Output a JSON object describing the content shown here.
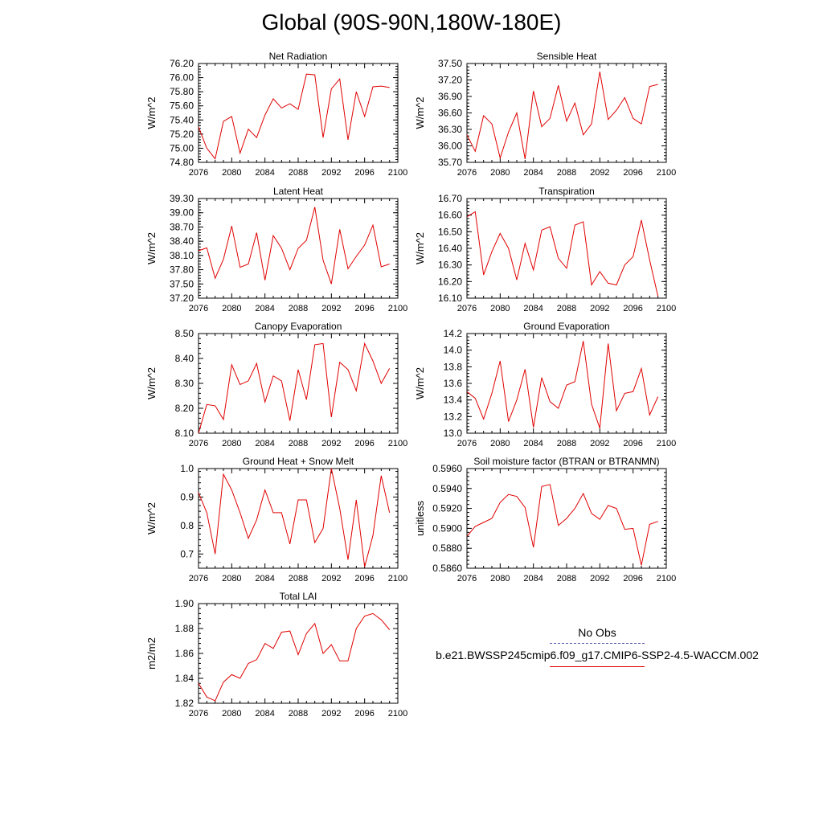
{
  "title": "Global (90S-90N,180W-180E)",
  "legend": {
    "obs_label": "No Obs",
    "case_label": "b.e21.BWSSP245cmip6.f09_g17.CMIP6-SSP2-4.5-WACCM.002",
    "obs_color": "#5a5ab0",
    "case_color": "#e00000"
  },
  "chart_data": [
    {
      "type": "line",
      "title": "Net Radiation",
      "ylabel": "W/m^2",
      "xlabel": "",
      "x": [
        2076,
        2077,
        2078,
        2079,
        2080,
        2081,
        2082,
        2083,
        2084,
        2085,
        2086,
        2087,
        2088,
        2089,
        2090,
        2091,
        2092,
        2093,
        2094,
        2095,
        2096,
        2097,
        2098,
        2099
      ],
      "xlim": [
        2076,
        2100
      ],
      "xticks": [
        "2076",
        "2080",
        "2084",
        "2088",
        "2092",
        "2096",
        "2100"
      ],
      "ylim": [
        74.8,
        76.2
      ],
      "yticks": [
        "74.80",
        "75.00",
        "75.20",
        "75.40",
        "75.60",
        "75.80",
        "76.00",
        "76.20"
      ],
      "series": [
        {
          "name": "b.e21.BWSSP245cmip6.f09_g17.CMIP6-SSP2-4.5-WACCM.002",
          "color": "#e00000",
          "values": [
            75.3,
            75.0,
            74.85,
            75.38,
            75.45,
            74.93,
            75.27,
            75.15,
            75.47,
            75.7,
            75.57,
            75.63,
            75.55,
            76.05,
            76.04,
            75.15,
            75.84,
            75.98,
            75.12,
            75.8,
            75.45,
            75.87,
            75.88,
            75.86
          ]
        }
      ]
    },
    {
      "type": "line",
      "title": "Sensible Heat",
      "ylabel": "W/m^2",
      "xlabel": "",
      "x": [
        2076,
        2077,
        2078,
        2079,
        2080,
        2081,
        2082,
        2083,
        2084,
        2085,
        2086,
        2087,
        2088,
        2089,
        2090,
        2091,
        2092,
        2093,
        2094,
        2095,
        2096,
        2097,
        2098,
        2099
      ],
      "xlim": [
        2076,
        2100
      ],
      "xticks": [
        "2076",
        "2080",
        "2084",
        "2088",
        "2092",
        "2096",
        "2100"
      ],
      "ylim": [
        35.7,
        37.5
      ],
      "yticks": [
        "35.70",
        "36.00",
        "36.30",
        "36.60",
        "36.90",
        "37.20",
        "37.50"
      ],
      "series": [
        {
          "name": "b.e21.BWSSP245cmip6.f09_g17.CMIP6-SSP2-4.5-WACCM.002",
          "color": "#e00000",
          "values": [
            36.2,
            35.9,
            36.55,
            36.4,
            35.78,
            36.25,
            36.6,
            35.76,
            37.0,
            36.35,
            36.5,
            37.1,
            36.45,
            36.78,
            36.2,
            36.4,
            37.35,
            36.48,
            36.65,
            36.88,
            36.5,
            36.4,
            37.08,
            37.12
          ]
        }
      ]
    },
    {
      "type": "line",
      "title": "Latent Heat",
      "ylabel": "W/m^2",
      "xlabel": "",
      "x": [
        2076,
        2077,
        2078,
        2079,
        2080,
        2081,
        2082,
        2083,
        2084,
        2085,
        2086,
        2087,
        2088,
        2089,
        2090,
        2091,
        2092,
        2093,
        2094,
        2095,
        2096,
        2097,
        2098,
        2099
      ],
      "xlim": [
        2076,
        2100
      ],
      "xticks": [
        "2076",
        "2080",
        "2084",
        "2088",
        "2092",
        "2096",
        "2100"
      ],
      "ylim": [
        37.2,
        39.3
      ],
      "yticks": [
        "37.20",
        "37.50",
        "37.80",
        "38.10",
        "38.40",
        "38.70",
        "39.00",
        "39.30"
      ],
      "series": [
        {
          "name": "b.e21.BWSSP245cmip6.f09_g17.CMIP6-SSP2-4.5-WACCM.002",
          "color": "#e00000",
          "values": [
            38.2,
            38.26,
            37.62,
            38.02,
            38.72,
            37.85,
            37.92,
            38.58,
            37.58,
            38.52,
            38.25,
            37.8,
            38.25,
            38.42,
            39.12,
            38.0,
            37.5,
            38.65,
            37.82,
            38.08,
            38.32,
            38.74,
            37.86,
            37.92
          ]
        }
      ]
    },
    {
      "type": "line",
      "title": "Transpiration",
      "ylabel": "W/m^2",
      "xlabel": "",
      "x": [
        2076,
        2077,
        2078,
        2079,
        2080,
        2081,
        2082,
        2083,
        2084,
        2085,
        2086,
        2087,
        2088,
        2089,
        2090,
        2091,
        2092,
        2093,
        2094,
        2095,
        2096,
        2097,
        2098,
        2099
      ],
      "xlim": [
        2076,
        2100
      ],
      "xticks": [
        "2076",
        "2080",
        "2084",
        "2088",
        "2092",
        "2096",
        "2100"
      ],
      "ylim": [
        16.1,
        16.7
      ],
      "yticks": [
        "16.10",
        "16.20",
        "16.30",
        "16.40",
        "16.50",
        "16.60",
        "16.70"
      ],
      "series": [
        {
          "name": "b.e21.BWSSP245cmip6.f09_g17.CMIP6-SSP2-4.5-WACCM.002",
          "color": "#e00000",
          "values": [
            16.59,
            16.62,
            16.24,
            16.38,
            16.49,
            16.4,
            16.21,
            16.43,
            16.27,
            16.51,
            16.53,
            16.34,
            16.28,
            16.54,
            16.56,
            16.18,
            16.26,
            16.19,
            16.18,
            16.3,
            16.35,
            16.57,
            16.33,
            16.11
          ]
        }
      ]
    },
    {
      "type": "line",
      "title": "Canopy Evaporation",
      "ylabel": "W/m^2",
      "xlabel": "",
      "x": [
        2076,
        2077,
        2078,
        2079,
        2080,
        2081,
        2082,
        2083,
        2084,
        2085,
        2086,
        2087,
        2088,
        2089,
        2090,
        2091,
        2092,
        2093,
        2094,
        2095,
        2096,
        2097,
        2098,
        2099
      ],
      "xlim": [
        2076,
        2100
      ],
      "xticks": [
        "2076",
        "2080",
        "2084",
        "2088",
        "2092",
        "2096",
        "2100"
      ],
      "ylim": [
        8.1,
        8.5
      ],
      "yticks": [
        "8.10",
        "8.20",
        "8.30",
        "8.40",
        "8.50"
      ],
      "series": [
        {
          "name": "b.e21.BWSSP245cmip6.f09_g17.CMIP6-SSP2-4.5-WACCM.002",
          "color": "#e00000",
          "values": [
            8.1,
            8.215,
            8.21,
            8.155,
            8.375,
            8.295,
            8.31,
            8.38,
            8.225,
            8.33,
            8.31,
            8.15,
            8.355,
            8.235,
            8.455,
            8.46,
            8.165,
            8.385,
            8.355,
            8.27,
            8.46,
            8.39,
            8.3,
            8.36
          ]
        }
      ]
    },
    {
      "type": "line",
      "title": "Ground Evaporation",
      "ylabel": "W/m^2",
      "xlabel": "",
      "x": [
        2076,
        2077,
        2078,
        2079,
        2080,
        2081,
        2082,
        2083,
        2084,
        2085,
        2086,
        2087,
        2088,
        2089,
        2090,
        2091,
        2092,
        2093,
        2094,
        2095,
        2096,
        2097,
        2098,
        2099
      ],
      "xlim": [
        2076,
        2100
      ],
      "xticks": [
        "2076",
        "2080",
        "2084",
        "2088",
        "2092",
        "2096",
        "2100"
      ],
      "ylim": [
        13.0,
        14.2
      ],
      "yticks": [
        "13.0",
        "13.2",
        "13.4",
        "13.6",
        "13.8",
        "14.0",
        "14.2"
      ],
      "series": [
        {
          "name": "b.e21.BWSSP245cmip6.f09_g17.CMIP6-SSP2-4.5-WACCM.002",
          "color": "#e00000",
          "values": [
            13.5,
            13.42,
            13.17,
            13.48,
            13.87,
            13.14,
            13.4,
            13.77,
            13.07,
            13.67,
            13.38,
            13.3,
            13.58,
            13.62,
            14.11,
            13.35,
            13.06,
            14.08,
            13.27,
            13.48,
            13.5,
            13.78,
            13.22,
            13.44
          ]
        }
      ]
    },
    {
      "type": "line",
      "title": "Ground Heat + Snow Melt",
      "ylabel": "W/m^2",
      "xlabel": "",
      "x": [
        2076,
        2077,
        2078,
        2079,
        2080,
        2081,
        2082,
        2083,
        2084,
        2085,
        2086,
        2087,
        2088,
        2089,
        2090,
        2091,
        2092,
        2093,
        2094,
        2095,
        2096,
        2097,
        2098,
        2099
      ],
      "xlim": [
        2076,
        2100
      ],
      "xticks": [
        "2076",
        "2080",
        "2084",
        "2088",
        "2092",
        "2096",
        "2100"
      ],
      "ylim": [
        0.65,
        1.0
      ],
      "yticks": [
        "0.7",
        "0.8",
        "0.9",
        "1.0"
      ],
      "series": [
        {
          "name": "b.e21.BWSSP245cmip6.f09_g17.CMIP6-SSP2-4.5-WACCM.002",
          "color": "#e00000",
          "values": [
            0.915,
            0.845,
            0.7,
            0.98,
            0.925,
            0.845,
            0.755,
            0.82,
            0.925,
            0.845,
            0.845,
            0.735,
            0.89,
            0.89,
            0.74,
            0.79,
            1.0,
            0.86,
            0.68,
            0.89,
            0.655,
            0.765,
            0.975,
            0.845
          ]
        }
      ]
    },
    {
      "type": "line",
      "title": "Soil moisture factor (BTRAN or BTRANMN)",
      "ylabel": "unitless",
      "xlabel": "",
      "x": [
        2076,
        2077,
        2078,
        2079,
        2080,
        2081,
        2082,
        2083,
        2084,
        2085,
        2086,
        2087,
        2088,
        2089,
        2090,
        2091,
        2092,
        2093,
        2094,
        2095,
        2096,
        2097,
        2098,
        2099
      ],
      "xlim": [
        2076,
        2100
      ],
      "xticks": [
        "2076",
        "2080",
        "2084",
        "2088",
        "2092",
        "2096",
        "2100"
      ],
      "ylim": [
        0.586,
        0.596
      ],
      "yticks": [
        "0.5860",
        "0.5880",
        "0.5900",
        "0.5920",
        "0.5940",
        "0.5960"
      ],
      "series": [
        {
          "name": "b.e21.BWSSP245cmip6.f09_g17.CMIP6-SSP2-4.5-WACCM.002",
          "color": "#e00000",
          "values": [
            0.5892,
            0.5902,
            0.5906,
            0.591,
            0.5926,
            0.5934,
            0.5932,
            0.5921,
            0.5881,
            0.5942,
            0.5944,
            0.5903,
            0.591,
            0.592,
            0.5935,
            0.5915,
            0.5909,
            0.5923,
            0.592,
            0.5899,
            0.59,
            0.5863,
            0.5904,
            0.5907
          ]
        }
      ]
    },
    {
      "type": "line",
      "title": "Total LAI",
      "ylabel": "m2/m2",
      "xlabel": "",
      "x": [
        2076,
        2077,
        2078,
        2079,
        2080,
        2081,
        2082,
        2083,
        2084,
        2085,
        2086,
        2087,
        2088,
        2089,
        2090,
        2091,
        2092,
        2093,
        2094,
        2095,
        2096,
        2097,
        2098,
        2099
      ],
      "xlim": [
        2076,
        2100
      ],
      "xticks": [
        "2076",
        "2080",
        "2084",
        "2088",
        "2092",
        "2096",
        "2100"
      ],
      "ylim": [
        1.82,
        1.9
      ],
      "yticks": [
        "1.82",
        "1.84",
        "1.86",
        "1.88",
        "1.90"
      ],
      "series": [
        {
          "name": "b.e21.BWSSP245cmip6.f09_g17.CMIP6-SSP2-4.5-WACCM.002",
          "color": "#e00000",
          "values": [
            1.836,
            1.825,
            1.822,
            1.837,
            1.843,
            1.84,
            1.852,
            1.855,
            1.868,
            1.864,
            1.877,
            1.878,
            1.859,
            1.876,
            1.884,
            1.86,
            1.867,
            1.854,
            1.854,
            1.88,
            1.89,
            1.892,
            1.887,
            1.879
          ]
        }
      ]
    }
  ]
}
